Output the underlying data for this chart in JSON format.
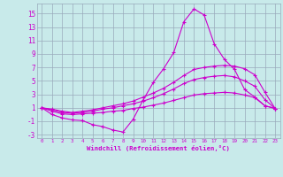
{
  "background_color": "#c8eaea",
  "grid_color": "#99aabb",
  "line_color": "#cc00cc",
  "xlabel": "Windchill (Refroidissement éolien,°C)",
  "xlim": [
    -0.5,
    23.5
  ],
  "ylim": [
    -3.5,
    16.5
  ],
  "xticks": [
    0,
    1,
    2,
    3,
    4,
    5,
    6,
    7,
    8,
    9,
    10,
    11,
    12,
    13,
    14,
    15,
    16,
    17,
    18,
    19,
    20,
    21,
    22,
    23
  ],
  "yticks": [
    -3,
    -1,
    1,
    3,
    5,
    7,
    9,
    11,
    13,
    15
  ],
  "x_values": [
    0,
    1,
    2,
    3,
    4,
    5,
    6,
    7,
    8,
    9,
    10,
    11,
    12,
    13,
    14,
    15,
    16,
    17,
    18,
    19,
    20,
    21,
    22,
    23
  ],
  "series": [
    [
      1,
      0,
      -0.5,
      -0.8,
      -0.9,
      -1.5,
      -1.8,
      -2.3,
      -2.6,
      -0.7,
      2.2,
      4.8,
      6.8,
      9.2,
      13.8,
      15.7,
      14.8,
      10.5,
      8.2,
      6.7,
      3.7,
      2.6,
      1.3,
      0.9
    ],
    [
      1,
      0.8,
      0.5,
      0.3,
      0.5,
      0.7,
      1.0,
      1.3,
      1.6,
      2.0,
      2.6,
      3.2,
      3.9,
      4.8,
      5.8,
      6.7,
      7.0,
      7.2,
      7.3,
      7.2,
      6.8,
      5.9,
      3.3,
      0.9
    ],
    [
      1,
      0.7,
      0.3,
      0.2,
      0.3,
      0.5,
      0.8,
      1.0,
      1.3,
      1.6,
      2.0,
      2.5,
      3.1,
      3.8,
      4.6,
      5.2,
      5.5,
      5.7,
      5.8,
      5.6,
      5.0,
      4.2,
      2.2,
      0.9
    ],
    [
      1,
      0.5,
      0.1,
      0.0,
      0.1,
      0.2,
      0.3,
      0.5,
      0.6,
      0.9,
      1.1,
      1.4,
      1.7,
      2.1,
      2.5,
      2.9,
      3.1,
      3.2,
      3.3,
      3.2,
      2.9,
      2.5,
      1.3,
      0.9
    ]
  ]
}
